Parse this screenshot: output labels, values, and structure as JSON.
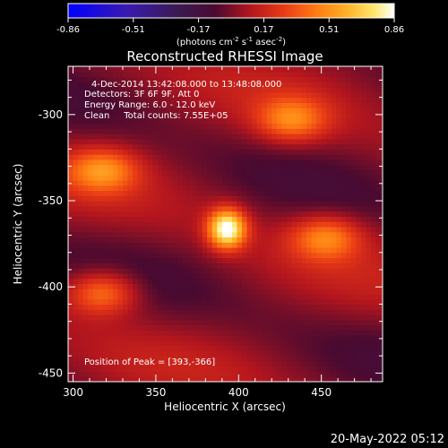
{
  "chart_data": {
    "type": "heatmap",
    "title": "Reconstructed RHESSI Image",
    "xlabel": "Heliocentric X (arcsec)",
    "ylabel": "Heliocentric Y (arcsec)",
    "xlim": [
      297,
      487
    ],
    "ylim": [
      -455,
      -272
    ],
    "xticks": [
      300,
      350,
      400,
      450
    ],
    "yticks": [
      -300,
      -350,
      -400,
      -450
    ],
    "colorbar": {
      "colormap": "red-temperature (blue-purple-red-orange-yellow-white)",
      "range": [
        -0.86,
        0.86
      ],
      "ticks": [
        "-0.86",
        "-0.51",
        "-0.17",
        "0.17",
        "0.51",
        "0.86"
      ],
      "label_parts": {
        "prefix": "(photons cm",
        "exp1": "-2",
        "mid1": " s",
        "exp2": "-1",
        "mid2": " asec",
        "exp3": "-2",
        "suffix": ")"
      }
    },
    "annotations": [
      "4-Dec-2014 13:42:08.000 to 13:48:08.000",
      "Detectors: 3F 6F 9F, Att 0",
      "Energy Range: 6.0 - 12.0 keV",
      "Clean     Total counts: 7.55E+05"
    ],
    "peak_label": "Position of Peak = [393,-366]",
    "peak": {
      "x": 393,
      "y": -366,
      "value": 0.86
    },
    "sources": [
      {
        "x": 393,
        "y": -366,
        "peak": 0.86
      },
      {
        "x": 318,
        "y": -332,
        "peak": 0.42
      },
      {
        "x": 432,
        "y": -303,
        "peak": 0.4
      },
      {
        "x": 453,
        "y": -371,
        "peak": 0.42
      },
      {
        "x": 318,
        "y": -403,
        "peak": 0.45
      }
    ],
    "grid": false,
    "background_color": "#000000"
  },
  "footer_date": "20-May-2022 05:12"
}
